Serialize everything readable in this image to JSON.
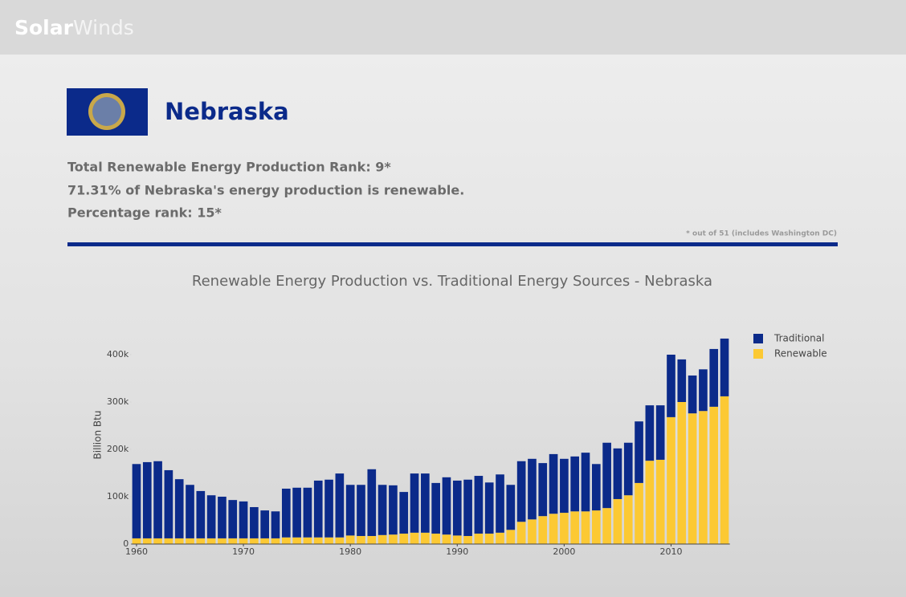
{
  "header": {
    "logo": {
      "part1": "Solar",
      "part2": "Winds"
    }
  },
  "state": {
    "name": "Nebraska",
    "lines": [
      "Total Renewable Energy Production Rank: 9*",
      "71.31% of Nebraska's energy production is renewable.",
      "Percentage rank: 15*"
    ],
    "footnote": "* out of 51 (includes Washington DC)"
  },
  "chart_data": {
    "type": "bar",
    "stacked": true,
    "title": "Renewable Energy Production vs. Traditional Energy Sources - Nebraska",
    "y_label": "Billion Btu",
    "x": [
      1960,
      1961,
      1962,
      1963,
      1964,
      1965,
      1966,
      1967,
      1968,
      1969,
      1970,
      1971,
      1972,
      1973,
      1974,
      1975,
      1976,
      1977,
      1978,
      1979,
      1980,
      1981,
      1982,
      1983,
      1984,
      1985,
      1986,
      1987,
      1988,
      1989,
      1990,
      1991,
      1992,
      1993,
      1994,
      1995,
      1996,
      1997,
      1998,
      1999,
      2000,
      2001,
      2002,
      2003,
      2004,
      2005,
      2006,
      2007,
      2008,
      2009,
      2010,
      2011,
      2012,
      2013,
      2014,
      2015
    ],
    "series": [
      {
        "name": "Traditional",
        "color": "#0b2a8a",
        "values": [
          157000,
          161000,
          163000,
          144000,
          125000,
          113000,
          100000,
          91000,
          88000,
          81000,
          78000,
          66000,
          59000,
          57000,
          103000,
          105000,
          105000,
          120000,
          122000,
          135000,
          107000,
          108000,
          141000,
          106000,
          104000,
          88000,
          125000,
          125000,
          107000,
          121000,
          116000,
          119000,
          122000,
          108000,
          123000,
          95000,
          128000,
          128000,
          112000,
          126000,
          114000,
          116000,
          124000,
          98000,
          138000,
          107000,
          111000,
          130000,
          117000,
          115000,
          132000,
          90000,
          80000,
          88000,
          122000,
          122000
        ]
      },
      {
        "name": "Renewable",
        "color": "#fcc933",
        "values": [
          12000,
          12000,
          12000,
          12000,
          12000,
          12000,
          12000,
          12000,
          12000,
          12000,
          12000,
          12000,
          12000,
          12000,
          14000,
          14000,
          14000,
          14000,
          14000,
          14000,
          18000,
          17000,
          17000,
          19000,
          20000,
          22000,
          24000,
          24000,
          22000,
          20000,
          18000,
          17000,
          22000,
          22000,
          24000,
          30000,
          47000,
          52000,
          59000,
          64000,
          66000,
          69000,
          69000,
          71000,
          76000,
          95000,
          103000,
          129000,
          176000,
          178000,
          268000,
          300000,
          276000,
          281000,
          290000,
          312000
        ]
      }
    ],
    "xlim": [
      1959.5,
      2015.5
    ],
    "xticks": [
      1960,
      1970,
      1980,
      1990,
      2000,
      2010
    ],
    "ylim": [
      0,
      440000
    ],
    "yticks": [
      0,
      {
        "value": 100000,
        "label": "100k"
      },
      {
        "value": 200000,
        "label": "200k"
      },
      {
        "value": 300000,
        "label": "300k"
      },
      {
        "value": 400000,
        "label": "400k"
      }
    ],
    "legend": "top-right"
  }
}
